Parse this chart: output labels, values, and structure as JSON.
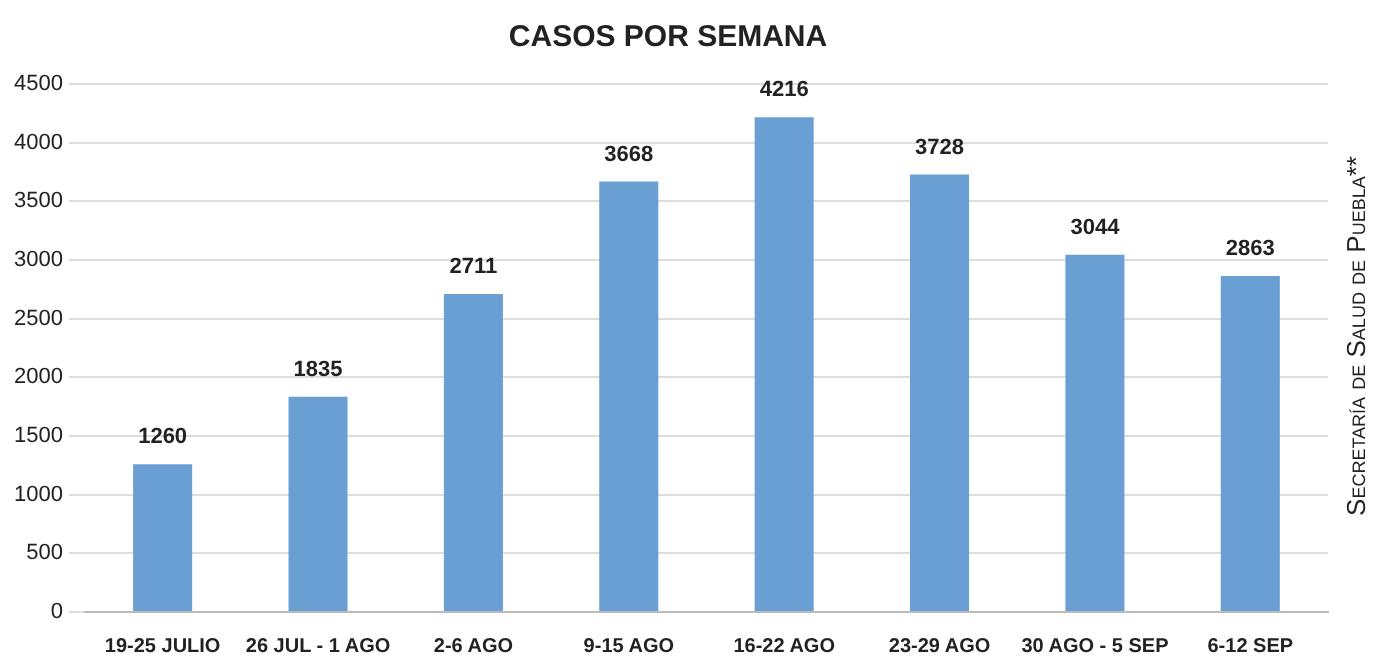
{
  "chart_data": {
    "type": "bar",
    "title": "CASOS POR SEMANA",
    "categories": [
      "19-25 JULIO",
      "26 JUL - 1 AGO",
      "2-6 AGO",
      "9-15 AGO",
      "16-22 AGO",
      "23-29 AGO",
      "30 AGO - 5 SEP",
      "6-12 SEP"
    ],
    "values": [
      1260,
      1835,
      2711,
      3668,
      4216,
      3728,
      3044,
      2863
    ],
    "color": "#6a9fd4",
    "ylim": [
      0,
      4500
    ],
    "yticks": [
      0,
      500,
      1000,
      1500,
      2000,
      2500,
      3000,
      3500,
      4000,
      4500
    ],
    "grid": "y",
    "data_labels": true,
    "legend": false,
    "annotations": [
      "Secretaría de Salud de Puebla**"
    ]
  }
}
